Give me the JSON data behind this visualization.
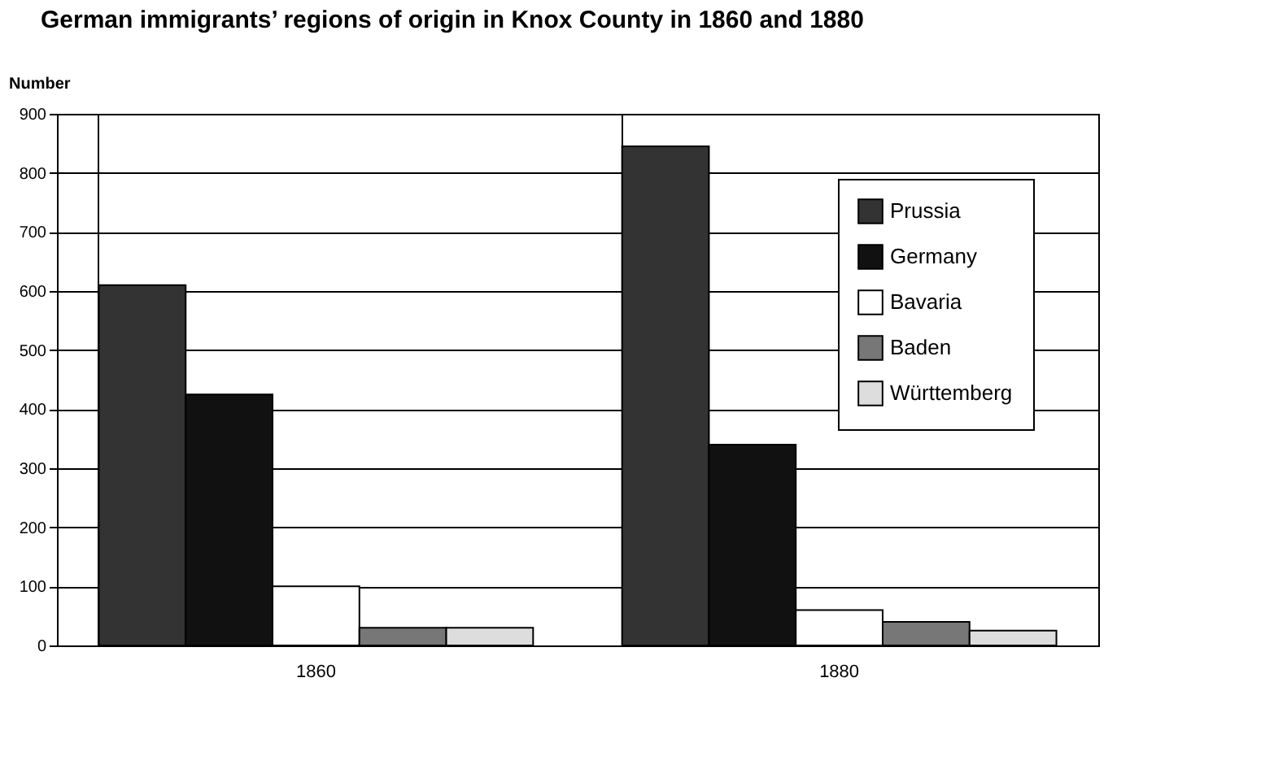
{
  "chart_data": {
    "type": "bar",
    "title": "German immigrants’ regions of origin in Knox County in 1860 and 1880",
    "ylabel": "Number",
    "categories": [
      "1860",
      "1880"
    ],
    "series": [
      {
        "name": "Prussia",
        "color": "#333333",
        "values": [
          610,
          845
        ]
      },
      {
        "name": "Germany",
        "color": "#111111",
        "values": [
          425,
          340
        ]
      },
      {
        "name": "Bavaria",
        "color": "#ffffff",
        "values": [
          100,
          60
        ]
      },
      {
        "name": "Baden",
        "color": "#777777",
        "values": [
          30,
          40
        ]
      },
      {
        "name": "Württemberg",
        "color": "#dddddd",
        "values": [
          30,
          25
        ]
      }
    ],
    "ylim": [
      0,
      900
    ],
    "yticks": [
      0,
      100,
      200,
      300,
      400,
      500,
      600,
      700,
      800,
      900
    ],
    "grid": "y",
    "legend": "top right"
  }
}
